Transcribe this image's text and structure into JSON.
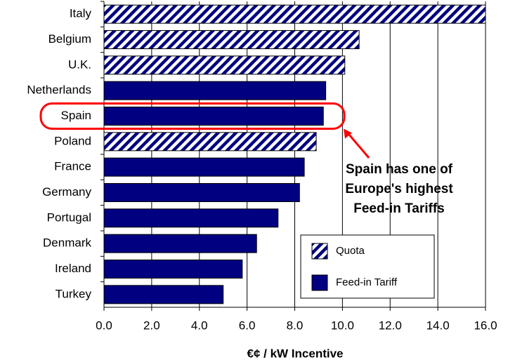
{
  "chart_data": {
    "type": "bar",
    "orientation": "horizontal",
    "x_label": "€¢ / kW Incentive",
    "categories": [
      "Italy",
      "Belgium",
      "U.K.",
      "Netherlands",
      "Spain",
      "Poland",
      "France",
      "Germany",
      "Portugal",
      "Denmark",
      "Ireland",
      "Turkey"
    ],
    "series": [
      {
        "name": "Quota",
        "color": "#000080",
        "pattern": "hatch",
        "values": [
          16.0,
          10.7,
          10.1,
          null,
          null,
          8.9,
          null,
          null,
          null,
          null,
          null,
          null
        ]
      },
      {
        "name": "Feed-in Tariff",
        "color": "#000080",
        "pattern": "solid",
        "values": [
          null,
          null,
          null,
          9.3,
          9.2,
          null,
          8.4,
          8.2,
          7.3,
          6.4,
          5.8,
          5.0
        ]
      }
    ],
    "xlim": [
      0,
      16
    ],
    "xticks": [
      {
        "value": 0,
        "label": "0.0"
      },
      {
        "value": 2,
        "label": "2.0"
      },
      {
        "value": 4,
        "label": "4.0"
      },
      {
        "value": 6,
        "label": "6.0"
      },
      {
        "value": 8,
        "label": "8.0"
      },
      {
        "value": 10,
        "label": "10.0"
      },
      {
        "value": 12,
        "label": "12.0"
      },
      {
        "value": 14,
        "label": "14.0"
      },
      {
        "value": 16,
        "label": "16.0"
      }
    ],
    "grid": true,
    "legend": "lower right",
    "annotation": [
      "Spain has one of",
      "Europe's highest",
      "Feed-in Tariffs"
    ],
    "annotation_color": "#ff0000"
  }
}
